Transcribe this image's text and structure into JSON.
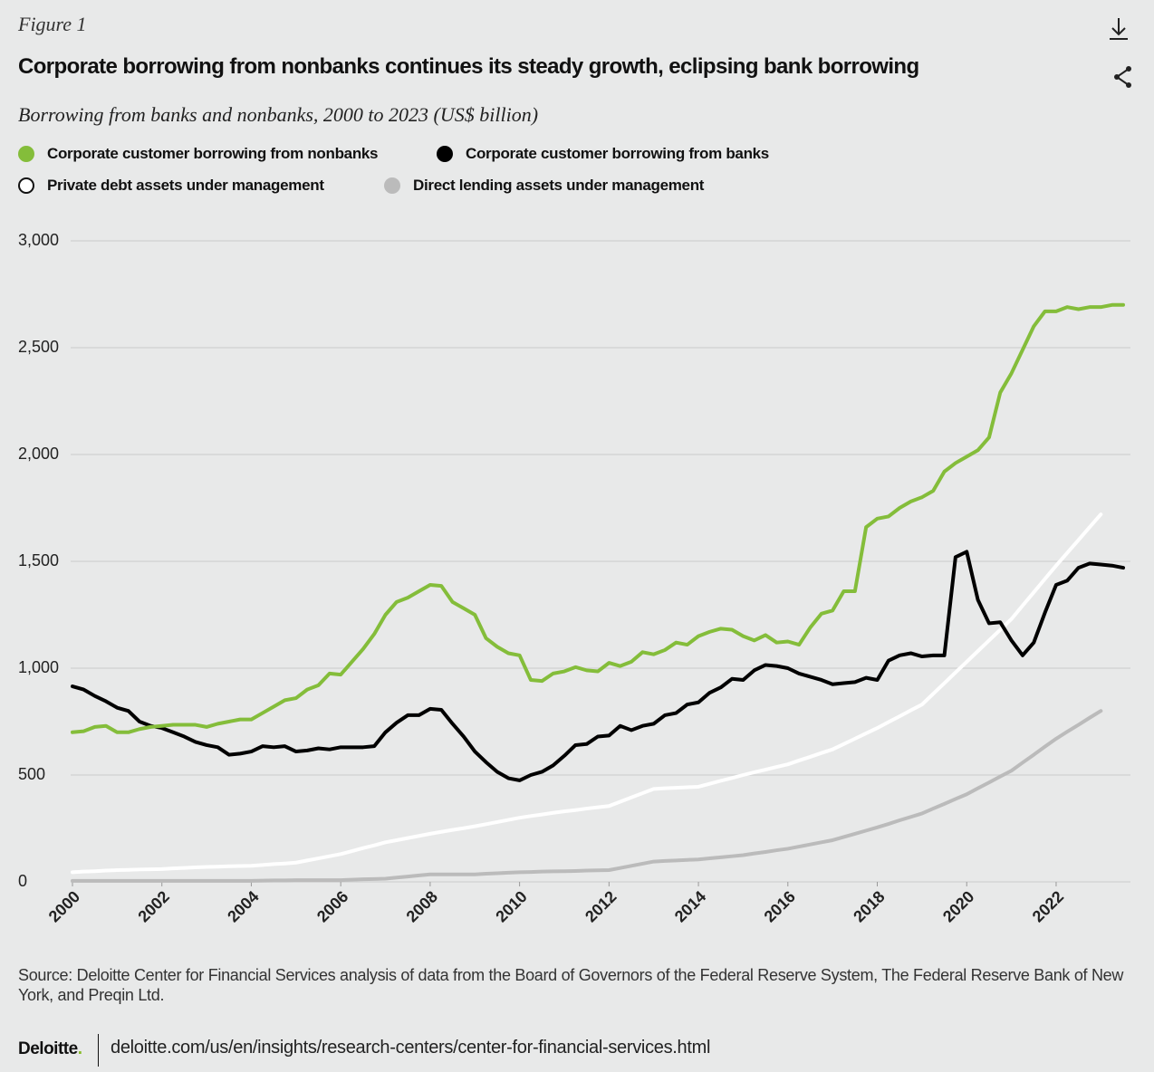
{
  "figure_label": "Figure 1",
  "chart_data": {
    "type": "line",
    "title": "Corporate borrowing from nonbanks continues its steady growth, eclipsing bank borrowing",
    "subtitle": "Borrowing from banks and nonbanks, 2000 to 2023 (US$ billion)",
    "x": [
      2000,
      2000.25,
      2000.5,
      2000.75,
      2001,
      2001.25,
      2001.5,
      2001.75,
      2002,
      2002.25,
      2002.5,
      2002.75,
      2003,
      2003.25,
      2003.5,
      2003.75,
      2004,
      2004.25,
      2004.5,
      2004.75,
      2005,
      2005.25,
      2005.5,
      2005.75,
      2006,
      2006.25,
      2006.5,
      2006.75,
      2007,
      2007.25,
      2007.5,
      2007.75,
      2008,
      2008.25,
      2008.5,
      2008.75,
      2009,
      2009.25,
      2009.5,
      2009.75,
      2010,
      2010.25,
      2010.5,
      2010.75,
      2011,
      2011.25,
      2011.5,
      2011.75,
      2012,
      2012.25,
      2012.5,
      2012.75,
      2013,
      2013.25,
      2013.5,
      2013.75,
      2014,
      2014.25,
      2014.5,
      2014.75,
      2015,
      2015.25,
      2015.5,
      2015.75,
      2016,
      2016.25,
      2016.5,
      2016.75,
      2017,
      2017.25,
      2017.5,
      2017.75,
      2018,
      2018.25,
      2018.5,
      2018.75,
      2019,
      2019.25,
      2019.5,
      2019.75,
      2020,
      2020.25,
      2020.5,
      2020.75,
      2021,
      2021.25,
      2021.5,
      2021.75,
      2022,
      2022.25,
      2022.5,
      2022.75,
      2023,
      2023.25,
      2023.5
    ],
    "series": [
      {
        "name": "Corporate customer borrowing from nonbanks",
        "color": "#84bd3a",
        "values": [
          700,
          705,
          725,
          730,
          700,
          700,
          715,
          725,
          730,
          735,
          735,
          735,
          725,
          740,
          750,
          760,
          760,
          790,
          820,
          850,
          860,
          900,
          920,
          975,
          970,
          1030,
          1090,
          1160,
          1250,
          1310,
          1330,
          1360,
          1390,
          1385,
          1310,
          1280,
          1250,
          1140,
          1100,
          1070,
          1060,
          945,
          940,
          975,
          985,
          1005,
          990,
          985,
          1025,
          1010,
          1030,
          1075,
          1065,
          1085,
          1120,
          1110,
          1150,
          1170,
          1185,
          1180,
          1150,
          1130,
          1155,
          1120,
          1125,
          1110,
          1190,
          1255,
          1270,
          1360,
          1360,
          1660,
          1700,
          1710,
          1750,
          1780,
          1800,
          1830,
          1920,
          1960,
          1990,
          2020,
          2080,
          2290,
          2380,
          2490,
          2600,
          2670,
          2670,
          2690,
          2680,
          2690,
          2690,
          2700,
          2700
        ]
      },
      {
        "name": "Corporate customer borrowing from banks",
        "color": "#000000",
        "values": [
          915,
          900,
          870,
          845,
          815,
          800,
          750,
          730,
          720,
          700,
          680,
          655,
          640,
          630,
          595,
          600,
          610,
          635,
          630,
          635,
          610,
          615,
          625,
          620,
          630,
          630,
          630,
          635,
          700,
          745,
          780,
          780,
          810,
          805,
          740,
          680,
          610,
          560,
          515,
          485,
          475,
          500,
          515,
          545,
          590,
          640,
          645,
          680,
          685,
          730,
          710,
          730,
          740,
          780,
          790,
          830,
          840,
          885,
          910,
          950,
          945,
          990,
          1015,
          1010,
          1000,
          975,
          960,
          945,
          925,
          930,
          935,
          955,
          945,
          1035,
          1060,
          1070,
          1055,
          1060,
          1060,
          1520,
          1545,
          1320,
          1210,
          1215,
          1130,
          1060,
          1120,
          1260,
          1390,
          1410,
          1470,
          1490,
          1485,
          1480,
          1470
        ]
      },
      {
        "name": "Private debt assets under management",
        "color": "#ffffff",
        "values": [
          45,
          48,
          50,
          53,
          55,
          56,
          58,
          59,
          60,
          63,
          65,
          68,
          70,
          71,
          73,
          74,
          75,
          79,
          83,
          86,
          90,
          100,
          110,
          120,
          130,
          144,
          158,
          171,
          185,
          195,
          205,
          215,
          225,
          234,
          243,
          251,
          260,
          270,
          280,
          290,
          300,
          308,
          315,
          323,
          330,
          336,
          343,
          349,
          355,
          375,
          395,
          415,
          435,
          438,
          440,
          443,
          445,
          459,
          473,
          486,
          500,
          513,
          525,
          538,
          550,
          568,
          585,
          603,
          620,
          645,
          670,
          695,
          720,
          748,
          775,
          803,
          830,
          880,
          930,
          980,
          1030,
          1080,
          1130,
          1180,
          1230,
          1293,
          1355,
          1418,
          1480,
          1540,
          1600,
          1660,
          1720,
          null,
          null
        ]
      },
      {
        "name": "Direct lending assets under management",
        "color": "#bbbbbb",
        "values": [
          5,
          5,
          5,
          5,
          5,
          5,
          5,
          5,
          5,
          5,
          5,
          5,
          5,
          5,
          5,
          5,
          5,
          6,
          7,
          7,
          8,
          8,
          8,
          8,
          8,
          10,
          12,
          13,
          15,
          20,
          25,
          30,
          35,
          35,
          35,
          35,
          35,
          38,
          40,
          43,
          45,
          46,
          48,
          49,
          50,
          51,
          53,
          54,
          55,
          65,
          75,
          85,
          95,
          98,
          100,
          103,
          105,
          110,
          115,
          120,
          125,
          133,
          140,
          148,
          155,
          165,
          175,
          185,
          195,
          210,
          225,
          240,
          255,
          271,
          288,
          304,
          320,
          343,
          365,
          388,
          410,
          438,
          465,
          493,
          520,
          558,
          595,
          633,
          670,
          703,
          735,
          768,
          800,
          null,
          null
        ]
      }
    ],
    "xlim": [
      2000,
      2023.5
    ],
    "xticks": [
      2000,
      2002,
      2004,
      2006,
      2008,
      2010,
      2012,
      2014,
      2016,
      2018,
      2020,
      2022
    ],
    "ylim": [
      0,
      3000
    ],
    "yticks": [
      0,
      500,
      {
        "value": 1000,
        "label": "1,000"
      },
      {
        "value": 1500,
        "label": "1,500"
      },
      {
        "value": 2000,
        "label": "2,000"
      },
      {
        "value": 2500,
        "label": "2,500"
      },
      {
        "value": 3000,
        "label": "3,000"
      }
    ],
    "grid": true
  },
  "source": "Source: Deloitte Center for Financial Services analysis of data from the Board of Governors of the Federal Reserve System, The Federal Reserve Bank of New York, and Preqin Ltd.",
  "footer": {
    "brand": "Deloitte",
    "url": "deloitte.com/us/en/insights/research-centers/center-for-financial-services.html"
  }
}
